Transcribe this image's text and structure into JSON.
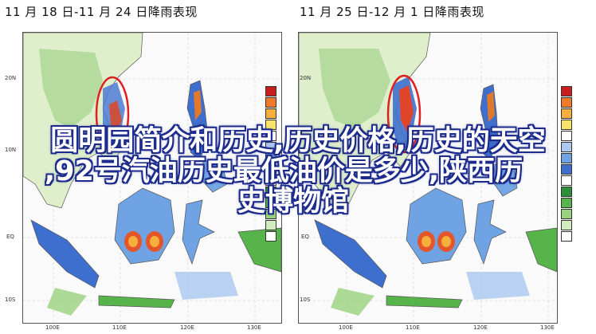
{
  "panels": [
    {
      "title": "11 月 18 日-11 月 24 日降雨表现",
      "lat_labels": [
        "20N",
        "10N",
        "EQ",
        "10S"
      ],
      "lon_labels": [
        "100E",
        "110E",
        "120E",
        "130E"
      ]
    },
    {
      "title": "11 月 25 日-12 月 1 日降雨表现",
      "lat_labels": [
        "20N",
        "10N",
        "EQ",
        "10S"
      ],
      "lon_labels": [
        "100E",
        "110E",
        "120E",
        "130E"
      ]
    }
  ],
  "legend_colors": [
    "#c81e1e",
    "#f07a28",
    "#f6ae3c",
    "#f7e26b",
    "#ffffff",
    "#aac8f0",
    "#6fa3e3",
    "#3f6fce",
    "#ffffff",
    "#2e8f3a",
    "#56b44a",
    "#9bd27f",
    "#d2ecbf",
    "#ffffff"
  ],
  "overlay": {
    "line1": "圆明园简介和历史,历史价格,历史的天空",
    "line2": ",92号汽油历史最低油价是多少,陕西历",
    "line3": "史博物馆"
  },
  "colors": {
    "land_light": "#e9f3d9",
    "ocean": "#f8f8f8",
    "highlight_circle": "#e02020",
    "overlay_text": "#ffffff",
    "overlay_stroke": "#1d2c8c"
  }
}
